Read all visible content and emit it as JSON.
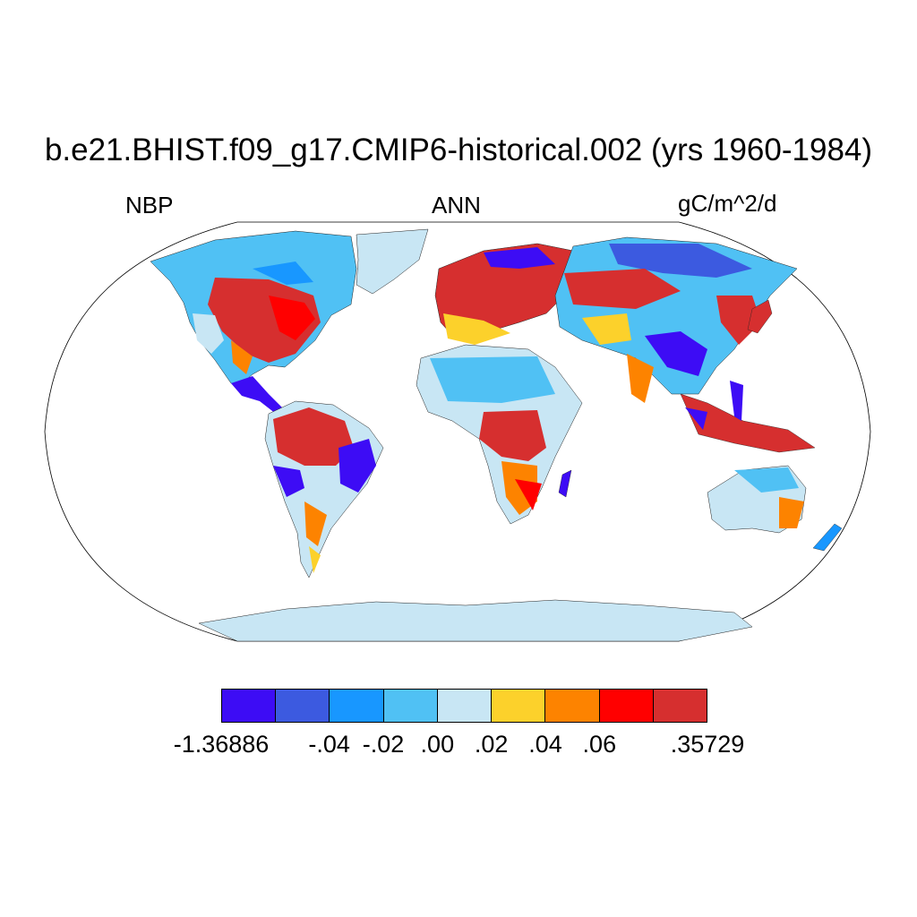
{
  "title": "b.e21.BHIST.f09_g17.CMIP6-historical.002 (yrs 1960-1984)",
  "variable": "NBP",
  "season": "ANN",
  "units": "gC/m^2/d",
  "colorbar": {
    "colors": [
      "#3d0cf5",
      "#3c5ae0",
      "#1897ff",
      "#50c1f4",
      "#c8e6f4",
      "#fcd12b",
      "#fd8300",
      "#ff0000",
      "#d62f2f"
    ],
    "labels": [
      "-1.36886",
      "-.04",
      "-.02",
      ".00",
      ".02",
      ".04",
      ".06",
      ".35729"
    ]
  }
}
